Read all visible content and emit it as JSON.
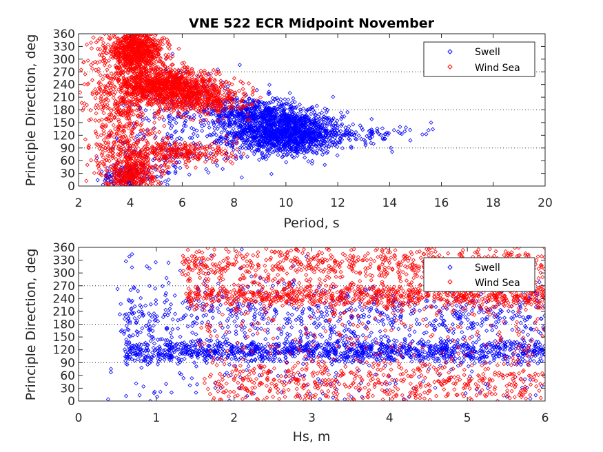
{
  "figure": {
    "title": "VNE 522 ECR Midpoint November"
  },
  "chart_data": [
    {
      "type": "scatter",
      "title": "VNE 522 ECR Midpoint November",
      "xlabel": "Period, s",
      "ylabel": "Principle Direction, deg",
      "xlim": [
        2,
        20
      ],
      "ylim": [
        0,
        360
      ],
      "xticks": [
        2,
        4,
        6,
        8,
        10,
        12,
        14,
        16,
        18,
        20
      ],
      "xtick_labels": [
        "2",
        "4",
        "6",
        "8",
        "10",
        "12",
        "14",
        "16",
        "18",
        "20"
      ],
      "yticks": [
        0,
        30,
        60,
        90,
        120,
        150,
        180,
        210,
        240,
        270,
        300,
        330,
        360
      ],
      "ytick_labels": [
        "0",
        "30",
        "60",
        "90",
        "120",
        "150",
        "180",
        "210",
        "240",
        "270",
        "300",
        "330",
        "360"
      ],
      "gridlines_y": [
        90,
        180,
        270
      ],
      "grid": "dotted horizontal at 90, 180, 270",
      "legend": {
        "position": "top-right",
        "entries": [
          "Swell",
          "Wind Sea"
        ]
      },
      "marker": "diamond",
      "series": [
        {
          "name": "Swell",
          "color": "#0000ff",
          "clusters": [
            {
              "x_mean": 10.0,
              "x_sd": 1.1,
              "y_mean": 125,
              "y_sd": 25,
              "n": 1400
            },
            {
              "x_mean": 8.8,
              "x_sd": 0.9,
              "y_mean": 175,
              "y_sd": 18,
              "n": 450
            },
            {
              "x_mean": 12.8,
              "x_sd": 1.0,
              "y_mean": 118,
              "y_sd": 14,
              "n": 90
            },
            {
              "x_mean": 6.2,
              "x_sd": 1.3,
              "y_mean": 170,
              "y_sd": 60,
              "n": 220
            },
            {
              "x_mean": 3.9,
              "x_sd": 0.5,
              "y_mean": 20,
              "y_sd": 15,
              "n": 120
            },
            {
              "x_mean": 5.0,
              "x_sd": 1.0,
              "y_mean": 60,
              "y_sd": 35,
              "n": 90
            }
          ],
          "outliers": [
            [
              15.5,
              132
            ],
            [
              15.6,
              150
            ],
            [
              14.8,
              108
            ],
            [
              14.4,
              125
            ],
            [
              14.4,
              140
            ]
          ]
        },
        {
          "name": "Wind Sea",
          "color": "#ff0000",
          "clusters": [
            {
              "x_mean": 4.2,
              "x_sd": 0.55,
              "y_mean": 320,
              "y_sd": 25,
              "n": 900
            },
            {
              "x_mean": 5.3,
              "x_sd": 1.0,
              "y_mean": 235,
              "y_sd": 22,
              "n": 1100
            },
            {
              "x_mean": 6.8,
              "x_sd": 0.9,
              "y_mean": 205,
              "y_sd": 18,
              "n": 350
            },
            {
              "x_mean": 5.5,
              "x_sd": 1.3,
              "y_mean": 80,
              "y_sd": 15,
              "n": 350
            },
            {
              "x_mean": 4.0,
              "x_sd": 0.5,
              "y_mean": 30,
              "y_sd": 20,
              "n": 350
            },
            {
              "x_mean": 3.8,
              "x_sd": 0.7,
              "y_mean": 150,
              "y_sd": 60,
              "n": 300
            },
            {
              "x_mean": 3.0,
              "x_sd": 0.4,
              "y_mean": 200,
              "y_sd": 80,
              "n": 80
            }
          ],
          "outliers": [
            [
              2.1,
              275
            ],
            [
              2.2,
              185
            ],
            [
              2.3,
              12
            ]
          ]
        }
      ]
    },
    {
      "type": "scatter",
      "xlabel": "Hs, m",
      "ylabel": "Principle Direction, deg",
      "xlim": [
        0,
        6
      ],
      "ylim": [
        0,
        360
      ],
      "xticks": [
        0,
        1,
        2,
        3,
        4,
        5,
        6
      ],
      "xtick_labels": [
        "0",
        "1",
        "2",
        "3",
        "4",
        "5",
        "6"
      ],
      "yticks": [
        0,
        30,
        60,
        90,
        120,
        150,
        180,
        210,
        240,
        270,
        300,
        330,
        360
      ],
      "ytick_labels": [
        "0",
        "30",
        "60",
        "90",
        "120",
        "150",
        "180",
        "210",
        "240",
        "270",
        "300",
        "330",
        "360"
      ],
      "gridlines_y": [
        90,
        180,
        270
      ],
      "grid": "dotted horizontal at 90, 180, 270",
      "legend": {
        "position": "top-right",
        "entries": [
          "Swell",
          "Wind Sea"
        ]
      },
      "marker": "diamond",
      "series": [
        {
          "name": "Swell",
          "color": "#0000ff",
          "clusters": [
            {
              "x_min": 0.6,
              "x_max": 6.0,
              "y_mean": 118,
              "y_sd": 14,
              "n": 1300
            },
            {
              "x_min": 0.5,
              "x_max": 6.0,
              "y_mean": 200,
              "y_sd": 30,
              "n": 650
            },
            {
              "x_min": 0.3,
              "x_max": 6.0,
              "y_mean": 40,
              "y_sd": 30,
              "n": 120
            },
            {
              "x_min": 0.5,
              "x_max": 3.0,
              "y_mean": 300,
              "y_sd": 40,
              "n": 40
            }
          ]
        },
        {
          "name": "Wind Sea",
          "color": "#ff0000",
          "clusters": [
            {
              "x_min": 1.3,
              "x_max": 6.0,
              "y_mean": 320,
              "y_sd": 25,
              "n": 700
            },
            {
              "x_min": 1.4,
              "x_max": 6.0,
              "y_mean": 245,
              "y_sd": 14,
              "n": 800
            },
            {
              "x_min": 1.6,
              "x_max": 6.0,
              "y_mean": 40,
              "y_sd": 28,
              "n": 550
            },
            {
              "x_min": 1.5,
              "x_max": 6.0,
              "y_mean": 150,
              "y_sd": 60,
              "n": 250
            }
          ]
        }
      ]
    }
  ]
}
